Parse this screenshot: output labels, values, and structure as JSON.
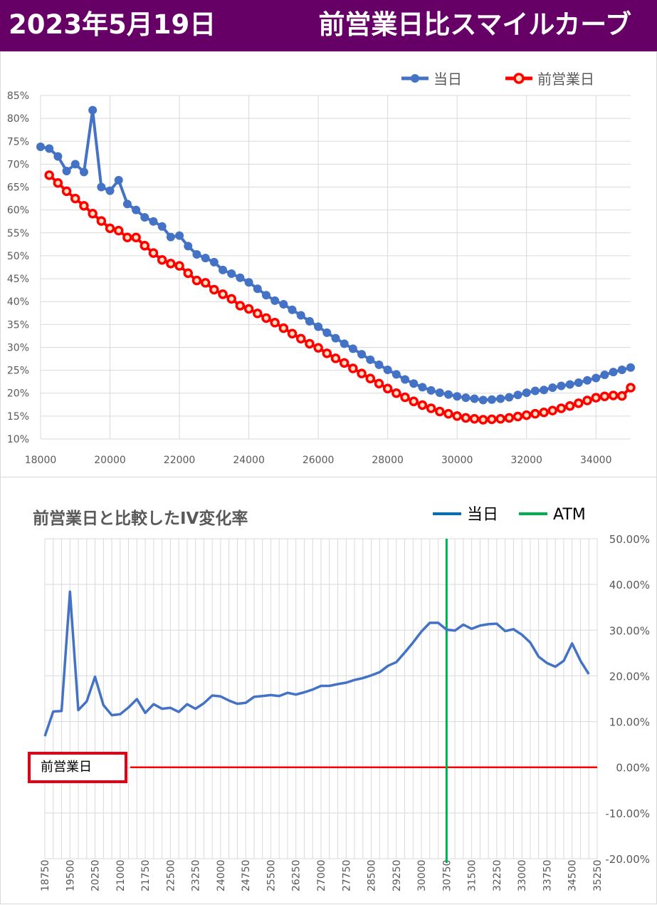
{
  "header": {
    "date": "2023年5月19日",
    "title": "前営業日比スマイルカーブ"
  },
  "colors": {
    "header_bg": "#660066",
    "today": "#4472C4",
    "prev": "#FF0000",
    "atm": "#00B050",
    "baseline": "#FF0000",
    "grid": "#D9D9D9"
  },
  "chart_data": [
    {
      "type": "line",
      "title": "",
      "xlim": [
        18000,
        35000
      ],
      "ylim": [
        10,
        85
      ],
      "x_ticks": [
        "18000",
        "20000",
        "22000",
        "24000",
        "26000",
        "28000",
        "30000",
        "32000",
        "34000"
      ],
      "y_ticks": [
        "10%",
        "15%",
        "20%",
        "25%",
        "30%",
        "35%",
        "40%",
        "45%",
        "50%",
        "55%",
        "60%",
        "65%",
        "70%",
        "75%",
        "80%",
        "85%"
      ],
      "legend": "top-right",
      "series": [
        {
          "name": "当日",
          "color": "#4472C4",
          "x": [
            18000,
            18250,
            18500,
            18750,
            19000,
            19250,
            19500,
            19750,
            20000,
            20250,
            20500,
            20750,
            21000,
            21250,
            21500,
            21750,
            22000,
            22250,
            22500,
            22750,
            23000,
            23250,
            23500,
            23750,
            24000,
            24250,
            24500,
            24750,
            25000,
            25250,
            25500,
            25750,
            26000,
            26250,
            26500,
            26750,
            27000,
            27250,
            27500,
            27750,
            28000,
            28250,
            28500,
            28750,
            29000,
            29250,
            29500,
            29750,
            30000,
            30250,
            30500,
            30750,
            31000,
            31250,
            31500,
            31750,
            32000,
            32250,
            32500,
            32750,
            33000,
            33250,
            33500,
            33750,
            34000,
            34250,
            34500,
            34750,
            35000
          ],
          "values": [
            73.8,
            73.4,
            71.7,
            68.5,
            70.0,
            68.3,
            81.8,
            65.0,
            64.2,
            66.5,
            61.3,
            60.0,
            58.4,
            57.5,
            56.4,
            54.1,
            54.4,
            52.1,
            50.3,
            49.5,
            48.6,
            46.9,
            46.1,
            45.2,
            44.2,
            42.8,
            41.4,
            40.2,
            39.4,
            38.2,
            37.0,
            35.7,
            34.5,
            33.2,
            32.0,
            30.8,
            29.7,
            28.5,
            27.3,
            26.2,
            25.1,
            24.1,
            23.0,
            22.1,
            21.3,
            20.6,
            20.1,
            19.7,
            19.3,
            19.0,
            18.8,
            18.5,
            18.6,
            18.8,
            19.1,
            19.6,
            20.1,
            20.5,
            20.7,
            21.2,
            21.6,
            21.9,
            22.3,
            22.8,
            23.3,
            24.0,
            24.6,
            25.1,
            25.6
          ]
        },
        {
          "name": "前営業日",
          "color": "#FF0000",
          "x": [
            18250,
            18500,
            18750,
            19000,
            19250,
            19500,
            19750,
            20000,
            20250,
            20500,
            20750,
            21000,
            21250,
            21500,
            21750,
            22000,
            22250,
            22500,
            22750,
            23000,
            23250,
            23500,
            23750,
            24000,
            24250,
            24500,
            24750,
            25000,
            25250,
            25500,
            25750,
            26000,
            26250,
            26500,
            26750,
            27000,
            27250,
            27500,
            27750,
            28000,
            28250,
            28500,
            28750,
            29000,
            29250,
            29500,
            29750,
            30000,
            30250,
            30500,
            30750,
            31000,
            31250,
            31500,
            31750,
            32000,
            32250,
            32500,
            32750,
            33000,
            33250,
            33500,
            33750,
            34000,
            34250,
            34500,
            34750,
            35000
          ],
          "values": [
            67.6,
            65.9,
            64.1,
            62.5,
            60.9,
            59.2,
            57.6,
            56.0,
            55.5,
            54.0,
            54.0,
            52.2,
            50.6,
            49.1,
            48.3,
            47.8,
            46.2,
            44.6,
            44.1,
            42.6,
            41.6,
            40.6,
            39.1,
            38.4,
            37.4,
            36.4,
            35.4,
            34.2,
            33.0,
            31.9,
            30.8,
            29.9,
            28.7,
            27.6,
            26.6,
            25.4,
            24.3,
            23.2,
            22.1,
            21.0,
            20.0,
            19.1,
            18.2,
            17.4,
            16.7,
            16.0,
            15.5,
            15.0,
            14.6,
            14.4,
            14.2,
            14.3,
            14.4,
            14.6,
            14.9,
            15.2,
            15.5,
            15.8,
            16.2,
            16.7,
            17.2,
            17.8,
            18.4,
            19.0,
            19.3,
            19.5,
            19.4,
            21.2
          ]
        }
      ]
    },
    {
      "type": "line",
      "title": "前営業日と比較したIV変化率",
      "legend": "top-right",
      "ylim": [
        -20,
        50
      ],
      "y_ticks": [
        "50.00%",
        "40.00%",
        "30.00%",
        "20.00%",
        "10.00%",
        "0.00%",
        "-10.00%",
        "-20.00%"
      ],
      "x_ticks": [
        "18750",
        "19500",
        "20250",
        "21000",
        "21750",
        "22500",
        "23250",
        "24000",
        "24750",
        "25500",
        "26250",
        "27000",
        "27750",
        "28500",
        "29250",
        "30000",
        "30750",
        "31500",
        "32250",
        "33000",
        "33750",
        "34500",
        "35250"
      ],
      "baseline_label": "前営業日",
      "atm": {
        "name": "ATM",
        "x": 30750
      },
      "series": [
        {
          "name": "当日",
          "color": "#4472C4",
          "x": [
            18750,
            19000,
            19250,
            19500,
            19750,
            20000,
            20250,
            20500,
            20750,
            21000,
            21250,
            21500,
            21750,
            22000,
            22250,
            22500,
            22750,
            23000,
            23250,
            23500,
            23750,
            24000,
            24250,
            24500,
            24750,
            25000,
            25250,
            25500,
            25750,
            26000,
            26250,
            26500,
            26750,
            27000,
            27250,
            27500,
            27750,
            28000,
            28250,
            28500,
            28750,
            29000,
            29250,
            29500,
            29750,
            30000,
            30250,
            30500,
            30750,
            31000,
            31250,
            31500,
            31750,
            32000,
            32250,
            32500,
            32750,
            33000,
            33250,
            33500,
            33750,
            34000,
            34250,
            34500,
            34750,
            35000
          ],
          "values": [
            6.8,
            12.2,
            12.3,
            38.4,
            12.5,
            14.4,
            19.8,
            13.6,
            11.4,
            11.6,
            13.1,
            14.9,
            11.9,
            13.8,
            12.8,
            13.0,
            12.1,
            13.8,
            12.8,
            14.0,
            15.7,
            15.5,
            14.6,
            13.9,
            14.1,
            15.4,
            15.6,
            15.8,
            15.6,
            16.3,
            15.9,
            16.4,
            17.0,
            17.8,
            17.8,
            18.2,
            18.5,
            19.1,
            19.5,
            20.1,
            20.8,
            22.2,
            23.0,
            25.1,
            27.3,
            29.7,
            31.6,
            31.6,
            30.1,
            29.9,
            31.2,
            30.3,
            31.0,
            31.3,
            31.4,
            29.8,
            30.2,
            29.0,
            27.3,
            24.2,
            22.8,
            22.0,
            23.3,
            27.1,
            23.3,
            20.4
          ]
        }
      ]
    }
  ]
}
